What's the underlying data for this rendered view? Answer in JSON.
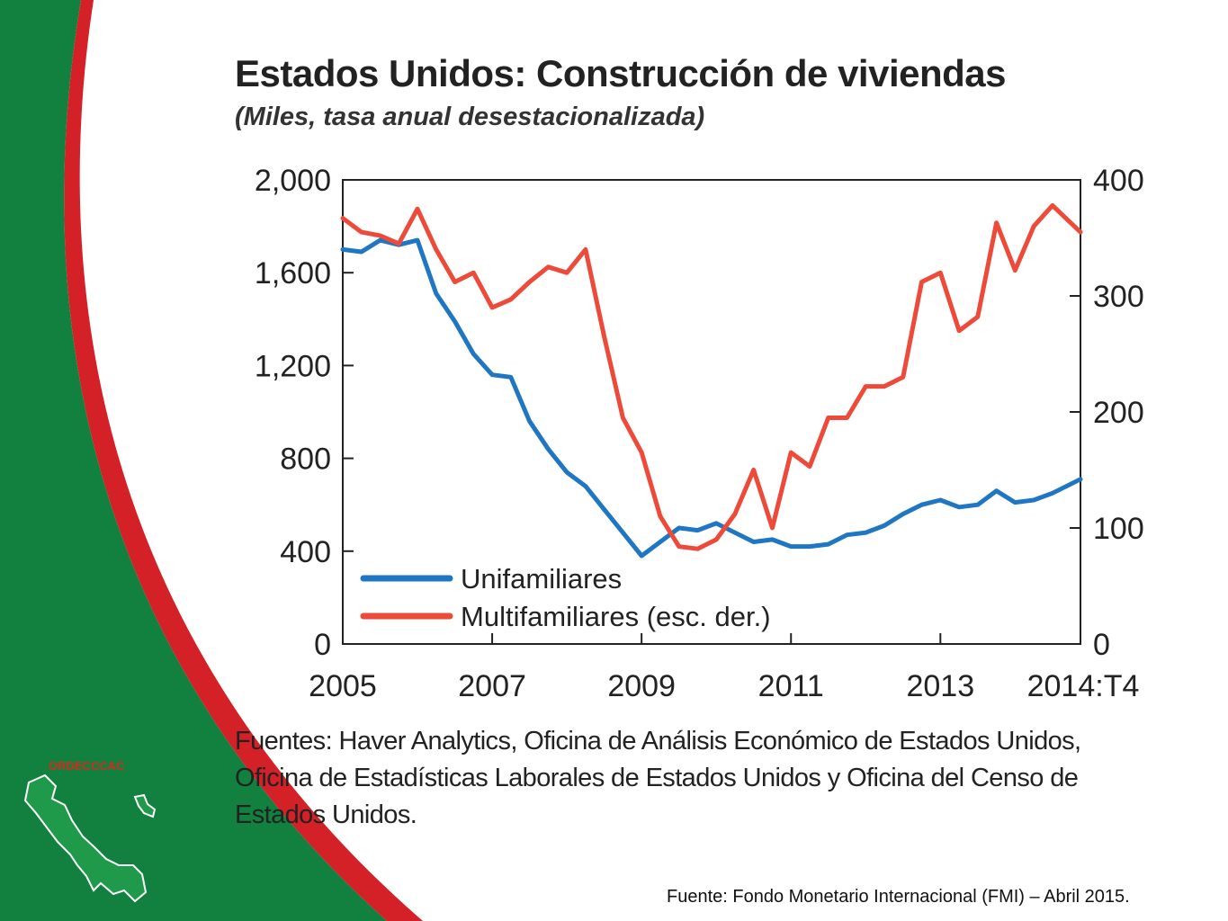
{
  "slide": {
    "org_name": "ORDECCCAC",
    "credit": "Fuente: Fondo Monetario Internacional (FMI) – Abril 2015.",
    "colors": {
      "green": "#12803e",
      "red": "#d42027",
      "white": "#ffffff"
    }
  },
  "chart_data": {
    "type": "line",
    "title": "Estados Unidos: Construcción de viviendas",
    "subtitle": "(Miles, tasa anual desestacionalizada)",
    "xlim": [
      2005,
      2014.875
    ],
    "x_ticks": [
      {
        "value": 2005,
        "label": "2005"
      },
      {
        "value": 2007,
        "label": "2007"
      },
      {
        "value": 2009,
        "label": "2009"
      },
      {
        "value": 2011,
        "label": "2011"
      },
      {
        "value": 2013,
        "label": "2013"
      },
      {
        "value": 2014.875,
        "label": "2014:T4"
      }
    ],
    "y_left": {
      "lim": [
        0,
        2000
      ],
      "ticks": [
        "0",
        "400",
        "800",
        "1,200",
        "1,600",
        "2,000"
      ]
    },
    "y_right": {
      "lim": [
        0,
        400
      ],
      "ticks": [
        "0",
        "100",
        "200",
        "300",
        "400"
      ]
    },
    "grid": false,
    "legend_position": "bottom-left",
    "series": [
      {
        "name": "Unifamiliares",
        "axis": "left",
        "color": "#1f77c4",
        "x": [
          2005.0,
          2005.25,
          2005.5,
          2005.75,
          2006.0,
          2006.25,
          2006.5,
          2006.75,
          2007.0,
          2007.25,
          2007.5,
          2007.75,
          2008.0,
          2008.25,
          2008.5,
          2008.75,
          2009.0,
          2009.25,
          2009.5,
          2009.75,
          2010.0,
          2010.25,
          2010.5,
          2010.75,
          2011.0,
          2011.25,
          2011.5,
          2011.75,
          2012.0,
          2012.25,
          2012.5,
          2012.75,
          2013.0,
          2013.25,
          2013.5,
          2013.75,
          2014.0,
          2014.25,
          2014.5,
          2014.875
        ],
        "values": [
          1700,
          1690,
          1740,
          1720,
          1740,
          1510,
          1390,
          1250,
          1160,
          1150,
          960,
          840,
          740,
          680,
          580,
          480,
          380,
          440,
          500,
          490,
          520,
          480,
          440,
          450,
          420,
          420,
          430,
          470,
          480,
          510,
          560,
          600,
          620,
          590,
          600,
          660,
          610,
          620,
          650,
          710
        ]
      },
      {
        "name": "Multifamiliares (esc. der.)",
        "axis": "right",
        "color": "#ee4a3a",
        "x": [
          2005.0,
          2005.25,
          2005.5,
          2005.75,
          2006.0,
          2006.25,
          2006.5,
          2006.75,
          2007.0,
          2007.25,
          2007.5,
          2007.75,
          2008.0,
          2008.25,
          2008.5,
          2008.75,
          2009.0,
          2009.25,
          2009.5,
          2009.75,
          2010.0,
          2010.25,
          2010.5,
          2010.75,
          2011.0,
          2011.25,
          2011.5,
          2011.75,
          2012.0,
          2012.25,
          2012.5,
          2012.75,
          2013.0,
          2013.25,
          2013.5,
          2013.75,
          2014.0,
          2014.25,
          2014.5,
          2014.875
        ],
        "values": [
          367,
          355,
          352,
          345,
          375,
          340,
          312,
          320,
          290,
          297,
          312,
          325,
          320,
          340,
          265,
          195,
          165,
          110,
          84,
          82,
          90,
          112,
          150,
          100,
          165,
          153,
          195,
          195,
          222,
          222,
          230,
          312,
          320,
          270,
          282,
          363,
          322,
          360,
          378,
          355
        ]
      }
    ],
    "sources": [
      "Fuentes: Haver Analytics, Oficina de Análisis Económico de Estados Unidos,",
      "Oficina de Estadísticas Laborales de Estados Unidos y Oficina del Censo de",
      "Estados Unidos."
    ]
  }
}
